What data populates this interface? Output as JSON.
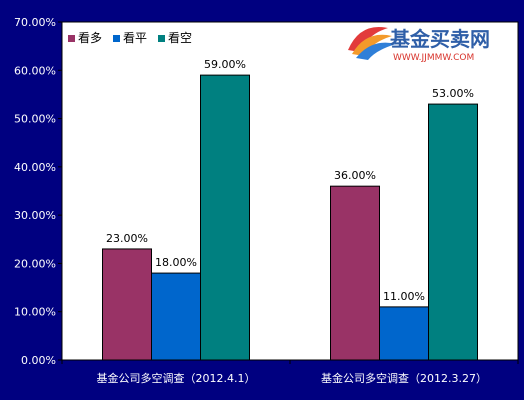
{
  "chart_data": {
    "type": "bar",
    "categories": [
      "基金公司多空调查（2012.4.1）",
      "基金公司多空调查（2012.3.27）"
    ],
    "series": [
      {
        "name": "看多",
        "color": "#993366",
        "values": [
          23,
          36
        ]
      },
      {
        "name": "看平",
        "color": "#0066cc",
        "values": [
          18,
          11
        ]
      },
      {
        "name": "看空",
        "color": "#008080",
        "values": [
          59,
          53
        ]
      }
    ],
    "data_labels": [
      [
        "23.00%",
        "36.00%"
      ],
      [
        "18.00%",
        "11.00%"
      ],
      [
        "59.00%",
        "53.00%"
      ]
    ],
    "y_ticks": [
      "0.00%",
      "10.00%",
      "20.00%",
      "30.00%",
      "40.00%",
      "50.00%",
      "60.00%",
      "70.00%"
    ],
    "ylim": [
      0,
      70
    ],
    "legend_position": "top-left",
    "grid": false,
    "background_color": "#000080",
    "plot_background_color": "#ffffff"
  },
  "watermark": {
    "brand": "基金买卖网",
    "url": "WWW.JJMMW.COM"
  }
}
